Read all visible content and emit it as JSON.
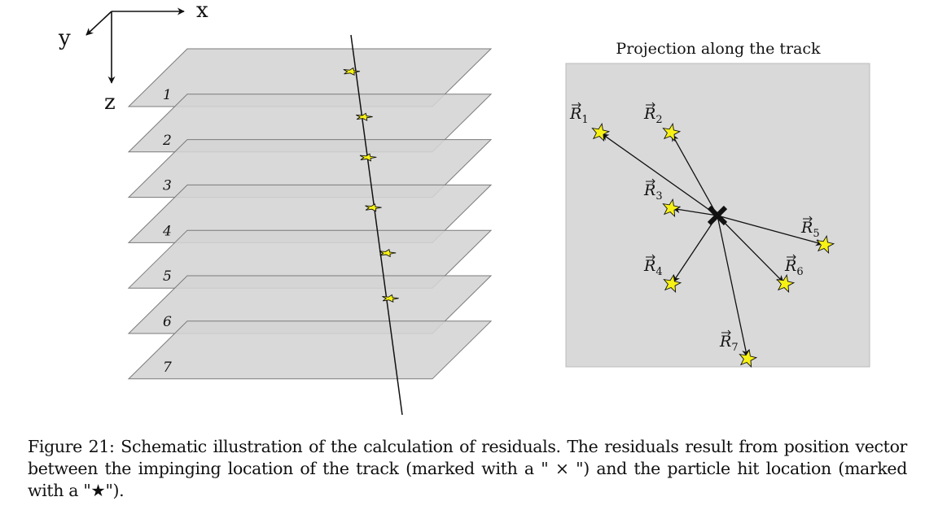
{
  "axes": {
    "x": "x",
    "y": "y",
    "z": "z"
  },
  "planes": [
    "1",
    "2",
    "3",
    "4",
    "5",
    "6",
    "7"
  ],
  "projection": {
    "title": "Projection along the track",
    "residuals": [
      {
        "name": "R",
        "index": "1"
      },
      {
        "name": "R",
        "index": "2"
      },
      {
        "name": "R",
        "index": "3"
      },
      {
        "name": "R",
        "index": "4"
      },
      {
        "name": "R",
        "index": "5"
      },
      {
        "name": "R",
        "index": "6"
      },
      {
        "name": "R",
        "index": "7"
      }
    ]
  },
  "caption": {
    "label": "Figure 21:",
    "text": "Schematic illustration of the calculation of residuals. The residuals result from position vector between the impinging location of the track (marked with a \" × \") and the particle hit location (marked with a \"★\")."
  },
  "colors": {
    "plane": "#d4d4d4",
    "panel": "#d9d9d9",
    "star": "#f7f116",
    "edge": "#7a7a7a"
  },
  "icons": {
    "track_marker": "cross-icon",
    "hit_marker": "star-icon"
  }
}
